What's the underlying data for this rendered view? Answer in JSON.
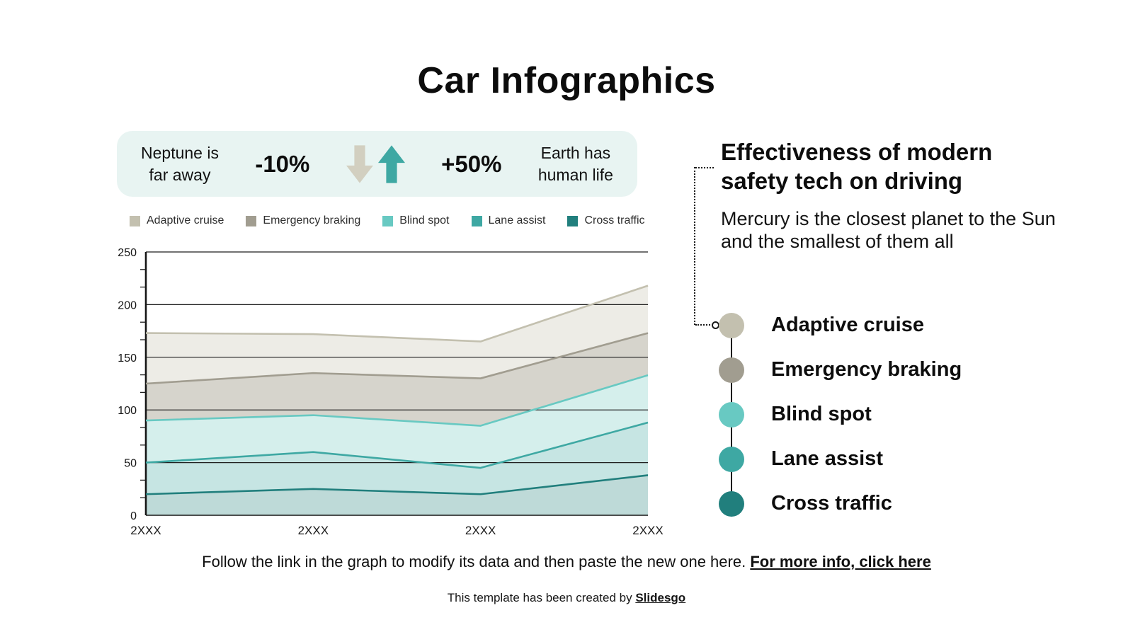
{
  "title": "Car Infographics",
  "stats_banner": {
    "background": "#e8f4f2",
    "left_label": {
      "line1": "Neptune is",
      "line2": "far away"
    },
    "down_value": "-10%",
    "up_value": "+50%",
    "right_label": {
      "line1": "Earth has",
      "line2": "human life"
    },
    "down_arrow_color": "#d2cfc0",
    "up_arrow_color": "#3ea8a3"
  },
  "chart_data": {
    "type": "area",
    "x_labels": [
      "2XXX",
      "2XXX",
      "2XXX",
      "2XXX"
    ],
    "ylim": [
      0,
      250
    ],
    "ytick_interval": 50,
    "grid": true,
    "legend_position": "top",
    "series": [
      {
        "name": "Adaptive cruise",
        "color": "#c3c0af",
        "fill": "#edece6",
        "values": [
          173,
          172,
          165,
          218
        ]
      },
      {
        "name": "Emergency braking",
        "color": "#a19d90",
        "fill": "#d6d4cc",
        "values": [
          125,
          135,
          130,
          173
        ]
      },
      {
        "name": "Blind spot",
        "color": "#68c9c2",
        "fill": "#d5efec",
        "values": [
          90,
          95,
          85,
          133
        ]
      },
      {
        "name": "Lane assist",
        "color": "#3ea8a3",
        "fill": "#c6e5e3",
        "values": [
          50,
          60,
          45,
          88
        ]
      },
      {
        "name": "Cross traffic",
        "color": "#217f7d",
        "fill": "#bedad8",
        "values": [
          20,
          25,
          20,
          38
        ]
      }
    ]
  },
  "sidebar": {
    "heading": "Effectiveness of modern safety tech on driving",
    "paragraph": "Mercury is the closest planet to the Sun and the smallest of them all",
    "items": [
      {
        "label": "Adaptive cruise",
        "color": "#c3c0af"
      },
      {
        "label": "Emergency braking",
        "color": "#a19d90"
      },
      {
        "label": "Blind spot",
        "color": "#68c9c2"
      },
      {
        "label": "Lane assist",
        "color": "#3ea8a3"
      },
      {
        "label": "Cross traffic",
        "color": "#217f7d"
      }
    ]
  },
  "footer": {
    "note": "Follow the link in the graph to modify its data and then paste the new one here. ",
    "link_label": "For more info, click here",
    "credit_prefix": "This template has been created by ",
    "credit_link": "Slidesgo"
  }
}
